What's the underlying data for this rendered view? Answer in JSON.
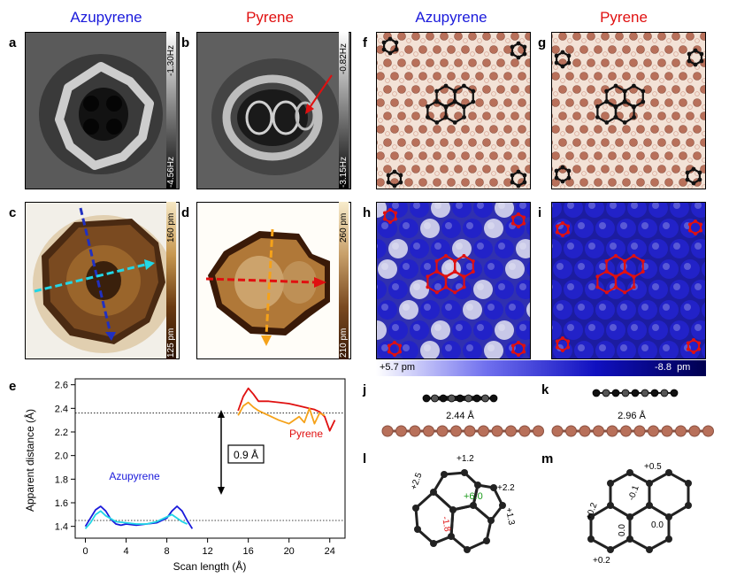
{
  "titles": {
    "azupyrene_1": "Azupyrene",
    "pyrene_1": "Pyrene",
    "azupyrene_2": "Azupyrene",
    "pyrene_2": "Pyrene"
  },
  "panel_labels": {
    "a": "a",
    "b": "b",
    "c": "c",
    "d": "d",
    "e": "e",
    "f": "f",
    "g": "g",
    "h": "h",
    "i": "i",
    "j": "j",
    "k": "k",
    "l": "l",
    "m": "m"
  },
  "colorbars": {
    "a": {
      "top": "-1.30Hz",
      "bottom": "-4.56Hz"
    },
    "b": {
      "top": "-0.82Hz",
      "bottom": "-3.15Hz"
    },
    "c": {
      "top": "160 pm",
      "bottom": "125 pm"
    },
    "d": {
      "top": "260 pm",
      "bottom": "210 pm"
    },
    "hi": {
      "left": "+5.7 pm",
      "right": "-8.8  pm"
    }
  },
  "side_views": {
    "j_distance": "2.44 Å",
    "k_distance": "2.96 Å"
  },
  "charges_l": {
    "c1": "+1.2",
    "c2": "+2.5",
    "c3": "+2.2",
    "c4": "+1.3",
    "c5": "+6.0",
    "c6": "-1.8"
  },
  "charges_m": {
    "c1": "+0.5",
    "c2": "-0.1",
    "c3": "+0.2",
    "c4": "0.0",
    "c5": "0.0",
    "c6": "+0.2"
  },
  "chart_data": {
    "type": "line",
    "xlabel": "Scan length (Å)",
    "ylabel": "Apparent distance (Å)",
    "xlim": [
      -1,
      25.5
    ],
    "ylim": [
      1.3,
      2.65
    ],
    "xticks": [
      "0",
      "4",
      "8",
      "12",
      "16",
      "20",
      "24"
    ],
    "yticks": [
      "1.4",
      "1.6",
      "1.8",
      "2.0",
      "2.2",
      "2.4",
      "2.6"
    ],
    "annotation": "0.9 Å",
    "reference_lines": [
      2.36,
      1.45
    ],
    "series": [
      {
        "name": "Azupyrene",
        "color": "#1a1adb",
        "x": [
          0,
          0.5,
          1,
          1.5,
          2,
          2.5,
          3,
          3.5,
          4,
          5,
          6,
          7,
          8,
          8.5,
          9,
          9.5,
          10,
          10.5
        ],
        "y": [
          1.4,
          1.47,
          1.54,
          1.57,
          1.53,
          1.46,
          1.42,
          1.41,
          1.42,
          1.41,
          1.42,
          1.43,
          1.47,
          1.53,
          1.57,
          1.53,
          1.45,
          1.38
        ]
      },
      {
        "name": "",
        "color": "#22d6e6",
        "x": [
          0,
          0.5,
          1,
          1.5,
          2,
          3,
          4,
          5,
          6,
          7,
          8,
          8.5,
          9,
          9.5,
          10
        ],
        "y": [
          1.38,
          1.43,
          1.5,
          1.53,
          1.49,
          1.44,
          1.43,
          1.42,
          1.42,
          1.44,
          1.48,
          1.5,
          1.47,
          1.44,
          1.42
        ]
      },
      {
        "name": "Pyrene",
        "color": "#e01010",
        "x": [
          15,
          15.5,
          16,
          16.5,
          17,
          18,
          19,
          20,
          21,
          22,
          22.5,
          23,
          23.5,
          24,
          24.5
        ],
        "y": [
          2.38,
          2.5,
          2.57,
          2.52,
          2.46,
          2.46,
          2.45,
          2.44,
          2.42,
          2.4,
          2.39,
          2.37,
          2.33,
          2.21,
          2.3
        ]
      },
      {
        "name": "",
        "color": "#f5a21a",
        "x": [
          15,
          15.5,
          16,
          16.5,
          17,
          18,
          19,
          20,
          21,
          21.5,
          22,
          22.5,
          23,
          23.5
        ],
        "y": [
          2.34,
          2.42,
          2.45,
          2.41,
          2.38,
          2.34,
          2.3,
          2.27,
          2.33,
          2.28,
          2.4,
          2.27,
          2.36,
          2.34
        ]
      }
    ]
  }
}
